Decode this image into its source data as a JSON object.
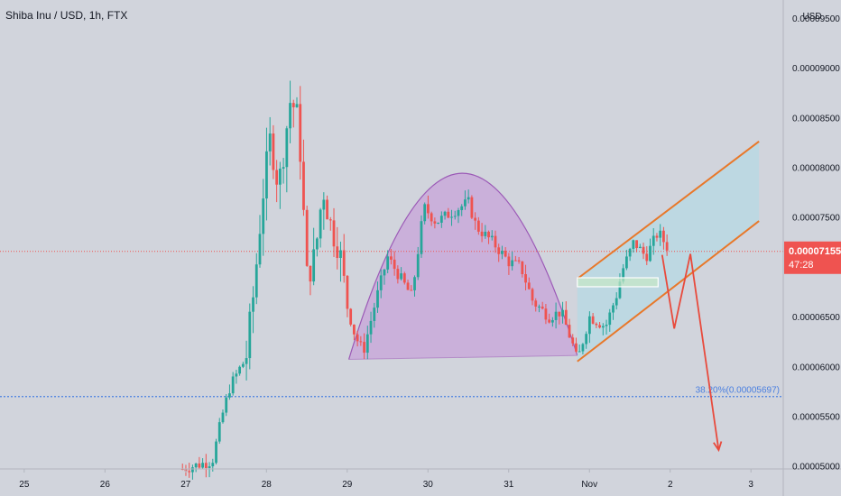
{
  "symbol_title": "Shiba Inu / USD, 1h, FTX",
  "colors": {
    "background": "#d1d4dc",
    "up": "#26a69a",
    "down": "#ef5350",
    "arc_fill": "#c9a9d9",
    "arc_stroke": "#9b59b6",
    "channel_fill": "#b8d8e4",
    "channel_stroke": "#e8782a",
    "projection": "#e84a3c",
    "fib_line": "#4a7fe0",
    "price_line": "#ef5350",
    "box_fill": "#c6e8c6"
  },
  "chart_data": {
    "type": "candlestick",
    "title": "Shiba Inu / USD, 1h, FTX",
    "y_unit": "USD",
    "ylim": [
      4.97e-05,
      9.68e-05
    ],
    "x_range_days": [
      24.7,
      34.4
    ],
    "x_ticks": [
      {
        "label": "25",
        "day": 25
      },
      {
        "label": "26",
        "day": 26
      },
      {
        "label": "27",
        "day": 27
      },
      {
        "label": "28",
        "day": 28
      },
      {
        "label": "29",
        "day": 29
      },
      {
        "label": "30",
        "day": 30
      },
      {
        "label": "31",
        "day": 31
      },
      {
        "label": "Nov",
        "day": 32
      },
      {
        "label": "2",
        "day": 33
      },
      {
        "label": "3",
        "day": 34
      }
    ],
    "y_ticks": [
      {
        "label": "0.00009500",
        "value": 9.5e-05
      },
      {
        "label": "0.00009000",
        "value": 9e-05
      },
      {
        "label": "0.00008500",
        "value": 8.5e-05
      },
      {
        "label": "0.00008000",
        "value": 8e-05
      },
      {
        "label": "0.00007500",
        "value": 7.5e-05
      },
      {
        "label": "0.00006500",
        "value": 6.5e-05
      },
      {
        "label": "0.00006000",
        "value": 6e-05
      },
      {
        "label": "0.00005500",
        "value": 5.5e-05
      },
      {
        "label": "0.00005000",
        "value": 5e-05
      }
    ],
    "current_price": {
      "label": "0.00007155",
      "value": 7.155e-05,
      "countdown": "47:28"
    },
    "fib_level": {
      "label": "38.20%(0.00005697)",
      "value": 5.697e-05
    },
    "candle_anchors": [
      [
        26.96,
        4.97e-05
      ],
      [
        27.33,
        5.05e-05
      ],
      [
        27.45,
        5.5e-05
      ],
      [
        27.55,
        5.8e-05
      ],
      [
        27.75,
        6.1e-05
      ],
      [
        27.85,
        6.8e-05
      ],
      [
        27.95,
        7.7e-05
      ],
      [
        28.05,
        8.3e-05
      ],
      [
        28.15,
        7.8e-05
      ],
      [
        28.3,
        8.7e-05
      ],
      [
        28.4,
        8.45e-05
      ],
      [
        28.5,
        6.9e-05
      ],
      [
        28.6,
        7.1e-05
      ],
      [
        28.7,
        7.8e-05
      ],
      [
        28.8,
        7.4e-05
      ],
      [
        28.9,
        7.2e-05
      ],
      [
        29.0,
        6.6e-05
      ],
      [
        29.1,
        6.3e-05
      ],
      [
        29.2,
        6.15e-05
      ],
      [
        29.35,
        6.65e-05
      ],
      [
        29.5,
        7.1e-05
      ],
      [
        29.65,
        6.9e-05
      ],
      [
        29.8,
        6.7e-05
      ],
      [
        29.95,
        7.6e-05
      ],
      [
        30.1,
        7.45e-05
      ],
      [
        30.3,
        7.55e-05
      ],
      [
        30.5,
        7.65e-05
      ],
      [
        30.6,
        7.4e-05
      ],
      [
        30.8,
        7.25e-05
      ],
      [
        31.0,
        7.05e-05
      ],
      [
        31.15,
        7e-05
      ],
      [
        31.3,
        6.65e-05
      ],
      [
        31.5,
        6.5e-05
      ],
      [
        31.65,
        6.55e-05
      ],
      [
        31.8,
        6.2e-05
      ],
      [
        31.85,
        6.05e-05
      ],
      [
        32.0,
        6.5e-05
      ],
      [
        32.2,
        6.4e-05
      ],
      [
        32.35,
        6.75e-05
      ],
      [
        32.4,
        6.95e-05
      ],
      [
        32.55,
        7.25e-05
      ],
      [
        32.7,
        7.1e-05
      ],
      [
        32.85,
        7.35e-05
      ],
      [
        33.0,
        7.15e-05
      ]
    ],
    "patterns": {
      "rounding_arc": {
        "baseline_start": [
          29.02,
          6.07e-05
        ],
        "baseline_end": [
          31.85,
          6.11e-05
        ],
        "apex": [
          30.42,
          7.94e-05
        ]
      },
      "rising_channel": {
        "upper_start": [
          31.85,
          6.88e-05
        ],
        "upper_end": [
          34.1,
          8.26e-05
        ],
        "lower_start": [
          31.85,
          6.05e-05
        ],
        "lower_end": [
          34.1,
          7.46e-05
        ]
      },
      "support_box": {
        "from": [
          31.85,
          6.89e-05
        ],
        "to": [
          32.85,
          6.8e-05
        ]
      },
      "projection_path": [
        [
          32.9,
          7.12e-05
        ],
        [
          33.05,
          6.38e-05
        ],
        [
          33.25,
          7.13e-05
        ],
        [
          33.6,
          5.16e-05
        ]
      ]
    }
  }
}
